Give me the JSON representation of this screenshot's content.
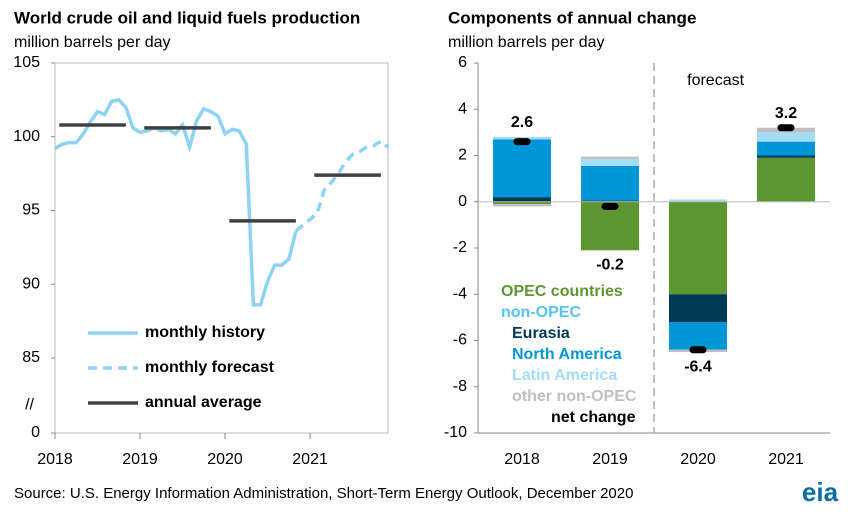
{
  "chart_data": [
    {
      "type": "line",
      "title": "World crude oil and liquid fuels production",
      "subtitle": "million barrels per day",
      "x": [
        0,
        1,
        2,
        3,
        4,
        5,
        6,
        7,
        8,
        9,
        10,
        11,
        12,
        13,
        14,
        15,
        16,
        17,
        18,
        19,
        20,
        21,
        22,
        23,
        24,
        25,
        26,
        27,
        28,
        29,
        30,
        31,
        32,
        33,
        34,
        35,
        36,
        37,
        38,
        39,
        40,
        41,
        42,
        43,
        44,
        45,
        46,
        47
      ],
      "xlim": [
        0,
        47
      ],
      "xticks": [
        {
          "value": 0,
          "label": "2018"
        },
        {
          "value": 12,
          "label": "2019"
        },
        {
          "value": 24,
          "label": "2020"
        },
        {
          "value": 36,
          "label": "2021"
        }
      ],
      "ylim": [
        85,
        105
      ],
      "yticks": [
        85,
        90,
        95,
        100,
        105
      ],
      "ybreak_tick": 0,
      "ybreak_label": "//",
      "series": [
        {
          "name": "monthly history",
          "color": "#8dd3f5",
          "style": "solid",
          "values": [
            99.2,
            99.5,
            99.6,
            99.6,
            100.2,
            101.0,
            101.7,
            101.5,
            102.4,
            102.5,
            102.0,
            100.6,
            100.3,
            100.4,
            100.6,
            100.4,
            100.5,
            100.2,
            100.8,
            99.3,
            101.1,
            101.9,
            101.7,
            101.4,
            100.2,
            100.5,
            100.4,
            99.5,
            88.6,
            88.6,
            90.2,
            91.3,
            91.3,
            91.7,
            93.6,
            null,
            null,
            null,
            null,
            null,
            null,
            null,
            null,
            null,
            null,
            null,
            null,
            null
          ]
        },
        {
          "name": "monthly forecast",
          "color": "#8dd3f5",
          "style": "dashed",
          "values": [
            null,
            null,
            null,
            null,
            null,
            null,
            null,
            null,
            null,
            null,
            null,
            null,
            null,
            null,
            null,
            null,
            null,
            null,
            null,
            null,
            null,
            null,
            null,
            null,
            null,
            null,
            null,
            null,
            null,
            null,
            null,
            null,
            null,
            null,
            93.6,
            94.0,
            94.4,
            94.8,
            96.4,
            96.9,
            97.5,
            98.3,
            98.8,
            99.0,
            99.3,
            99.4,
            99.7,
            99.3
          ]
        }
      ],
      "annual_average": {
        "name": "annual average",
        "color": "#404040",
        "values": [
          100.8,
          100.6,
          94.3,
          97.4
        ]
      }
    },
    {
      "type": "stacked_bar",
      "title": "Components of annual change",
      "subtitle": "million barrels per day",
      "annotation": "forecast",
      "categories": [
        "2018",
        "2019",
        "2020",
        "2021"
      ],
      "ylim": [
        -10,
        6
      ],
      "yticks": [
        -10,
        -8,
        -6,
        -4,
        -2,
        0,
        2,
        4,
        6
      ],
      "legend_group": {
        "name": "non-OPEC",
        "color": "#56c4f0"
      },
      "series": [
        {
          "name": "OPEC countries",
          "color": "#5d9732",
          "values": [
            -0.1,
            -2.1,
            -4.0,
            1.9
          ]
        },
        {
          "name": "Eurasia",
          "color": "#003953",
          "values": [
            0.2,
            0.05,
            -1.2,
            0.1
          ]
        },
        {
          "name": "North America",
          "color": "#0096d7",
          "values": [
            2.5,
            1.5,
            -1.2,
            0.6
          ]
        },
        {
          "name": "Latin America",
          "color": "#a4dcf5",
          "values": [
            0.1,
            0.3,
            0.1,
            0.4
          ]
        },
        {
          "name": "other non-OPEC",
          "color": "#bfbfbf",
          "values": [
            -0.1,
            0.1,
            -0.1,
            0.2
          ]
        }
      ],
      "net_change": {
        "name": "net change",
        "color": "#000000",
        "values": [
          2.6,
          -0.2,
          -6.4,
          3.2
        ]
      }
    }
  ],
  "source": "Source: U.S. Energy Information Administration, Short-Term Energy Outlook, December 2020",
  "logo": "eia"
}
